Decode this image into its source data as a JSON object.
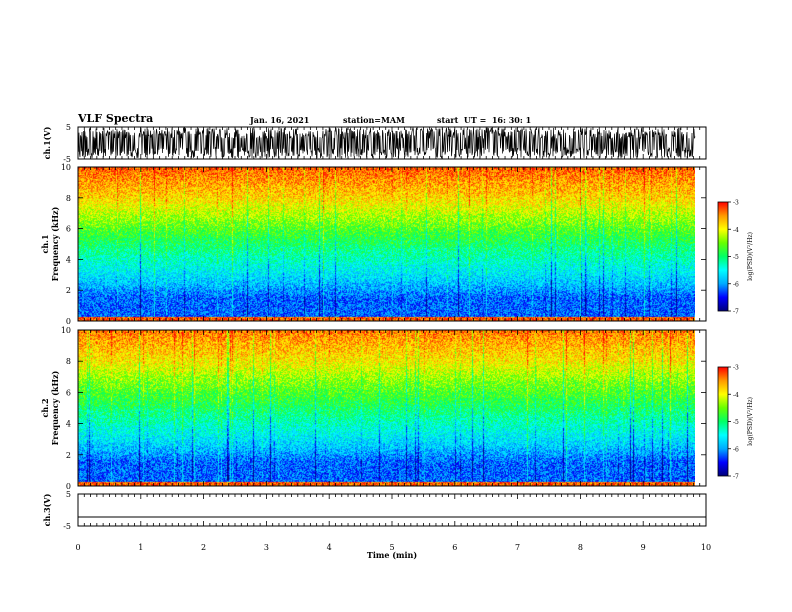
{
  "header": {
    "title": "VLF Spectra",
    "date": "Jan. 16, 2021",
    "station": "station=MAM",
    "start": "start  UT =  16: 30: 1"
  },
  "colors": {
    "colormap": [
      "#00007a",
      "#0000ff",
      "#00aaff",
      "#00ffff",
      "#00ff66",
      "#66ff00",
      "#ffff00",
      "#ff9900",
      "#ff0000"
    ],
    "trace": "#000000"
  },
  "chart_data": [
    {
      "type": "line",
      "name": "ch1-waveform",
      "ylabel": "ch.1(V)",
      "ylim": [
        -5,
        5
      ],
      "y_ticks": [
        "5",
        "-5"
      ],
      "x": [
        0,
        9.83
      ],
      "y": [
        0,
        0
      ]
    },
    {
      "type": "heatmap",
      "name": "ch1-spectrogram",
      "ylabel_line1": "ch.1",
      "ylabel_line2": "Frequency  (kHz)",
      "ylim": [
        0,
        10
      ],
      "y_ticks": [
        "0",
        "2",
        "4",
        "6",
        "8",
        "10"
      ],
      "xlim": [
        0,
        9.83
      ],
      "freq_bands_khz": [
        0.25,
        1.5,
        2.5,
        4.0,
        5.5,
        6.8,
        8.0,
        10.0
      ],
      "log_psd_by_band": [
        -3.3,
        -6.2,
        -5.8,
        -5.3,
        -4.8,
        -4.3,
        -3.8,
        -3.3
      ],
      "colorbar": {
        "label": "log(PSD)(V²/Hz)",
        "range": [
          -7,
          -3
        ],
        "ticks": [
          "-3",
          "-4",
          "-5",
          "-6",
          "-7"
        ]
      }
    },
    {
      "type": "heatmap",
      "name": "ch2-spectrogram",
      "ylabel_line1": "ch.2",
      "ylabel_line2": "Frequency  (kHz)",
      "ylim": [
        0,
        10
      ],
      "y_ticks": [
        "0",
        "2",
        "4",
        "6",
        "8",
        "10"
      ],
      "xlim": [
        0,
        9.83
      ],
      "freq_bands_khz": [
        0.25,
        1.5,
        2.5,
        4.0,
        5.5,
        6.8,
        8.0,
        10.0
      ],
      "log_psd_by_band": [
        -3.3,
        -6.2,
        -5.8,
        -5.3,
        -4.8,
        -4.4,
        -3.9,
        -3.4
      ],
      "colorbar": {
        "label": "log(PSD)(V²/Hz)",
        "range": [
          -7,
          -3
        ],
        "ticks": [
          "-3",
          "-4",
          "-5",
          "-6",
          "-7"
        ]
      }
    },
    {
      "type": "line",
      "name": "ch3-waveform",
      "ylabel": "ch.3(V)",
      "ylim": [
        -5,
        5
      ],
      "y_ticks": [
        "5",
        "-5"
      ],
      "x": [
        0,
        10
      ],
      "y": [
        -2.2,
        -2.2
      ]
    }
  ],
  "x_axis": {
    "label": "Time  (min)",
    "range": [
      0,
      10
    ],
    "ticks": [
      "0",
      "1",
      "2",
      "3",
      "4",
      "5",
      "6",
      "7",
      "8",
      "9",
      "10"
    ]
  }
}
